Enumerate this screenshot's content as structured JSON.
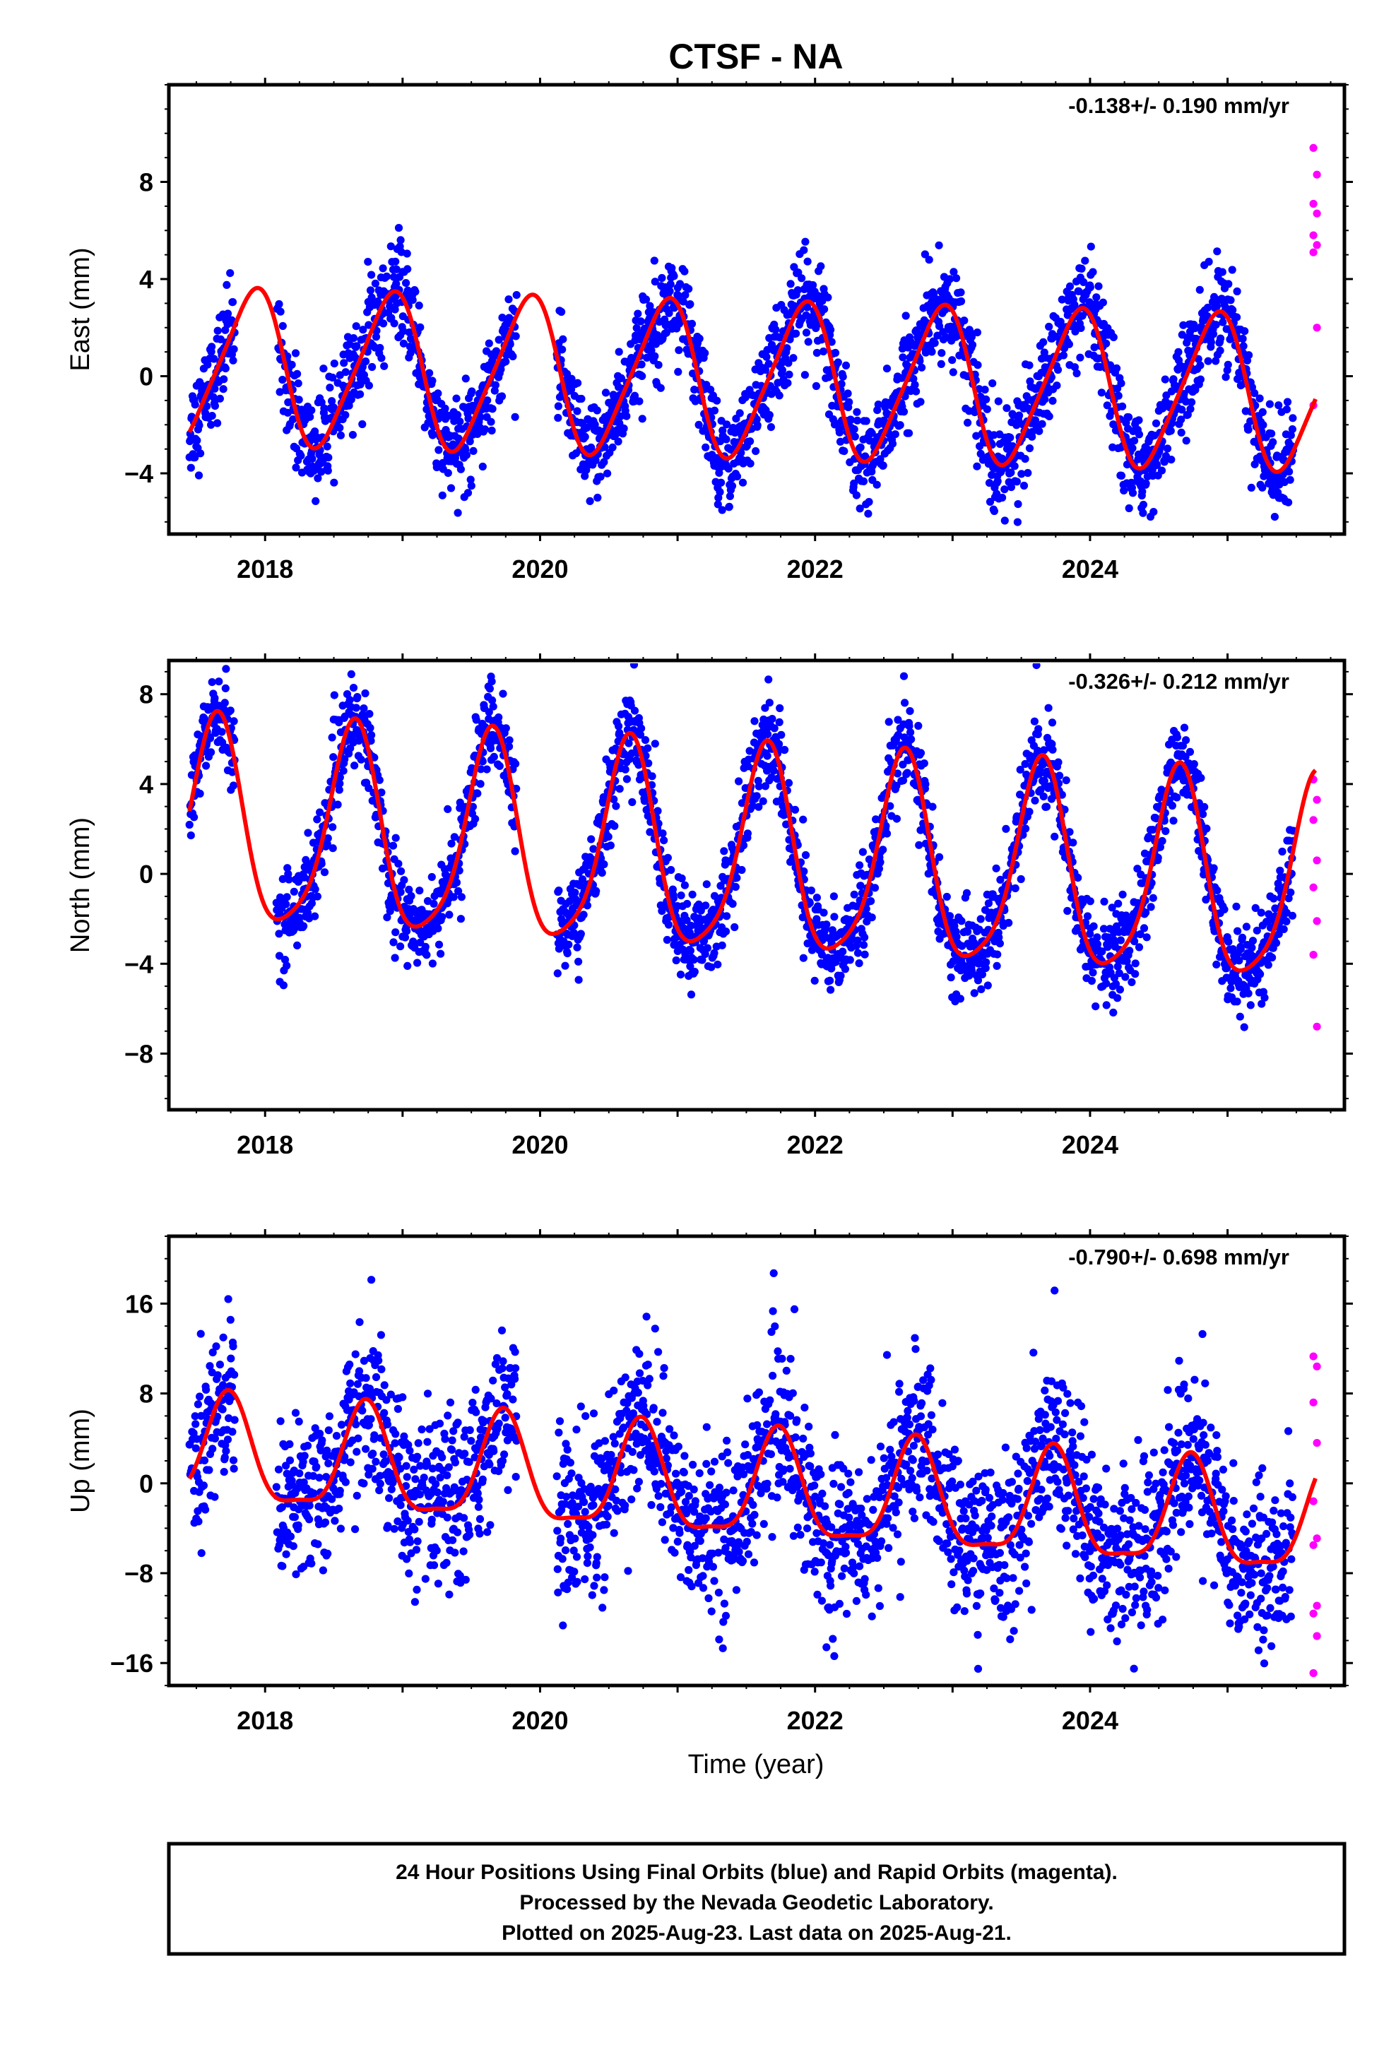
{
  "title": "CTSF - NA",
  "xlabel": "Time (year)",
  "colors": {
    "final": "#0000ff",
    "rapid": "#ff00ff",
    "model": "#ff0000",
    "frame": "#000000"
  },
  "footer": [
    "24 Hour Positions Using Final Orbits (blue) and Rapid Orbits (magenta).",
    "Processed by the Nevada Geodetic Laboratory.",
    "Plotted on 2025-Aug-23. Last data on 2025-Aug-21."
  ],
  "chart_data": [
    {
      "type": "scatter",
      "name": "east",
      "ylabel": "East (mm)",
      "rate": "-0.138+/- 0.190 mm/yr",
      "xlim": [
        2017.3,
        2025.85
      ],
      "ylim": [
        -6.5,
        12
      ],
      "x_ticks": [
        2018,
        2020,
        2022,
        2024
      ],
      "y_ticks": [
        -4,
        0,
        4,
        8
      ],
      "start": 2017.45,
      "end_final": 2025.48,
      "end": 2025.64,
      "trend": 0.4,
      "rate_val": -0.138,
      "annual_cos": -3.0,
      "annual_sin": 0.9,
      "semi_cos": 0.3,
      "semi_sin": 0.4,
      "noise": 1.0,
      "gaps": [
        [
          2017.78,
          2018.08
        ],
        [
          2019.83,
          2020.12
        ]
      ],
      "rapid_values": [
        9.4,
        8.3,
        7.1,
        6.7,
        5.8,
        5.4,
        5.1,
        2.0,
        -1.2
      ]
    },
    {
      "type": "scatter",
      "name": "north",
      "ylabel": "North (mm)",
      "rate": "-0.326+/- 0.212 mm/yr",
      "xlim": [
        2017.3,
        2025.85
      ],
      "ylim": [
        -10.5,
        9.5
      ],
      "x_ticks": [
        2018,
        2020,
        2022,
        2024
      ],
      "y_ticks": [
        -8,
        -4,
        0,
        4,
        8
      ],
      "start": 2017.45,
      "end_final": 2025.48,
      "end": 2025.64,
      "trend": 2.0,
      "rate_val": -0.326,
      "annual_cos": 1.6,
      "annual_sin": 4.2,
      "semi_cos": -0.8,
      "semi_sin": 0.3,
      "noise": 1.0,
      "gaps": [
        [
          2017.78,
          2018.08
        ],
        [
          2019.83,
          2020.12
        ]
      ],
      "rapid_values": [
        4.2,
        3.3,
        2.4,
        0.6,
        -0.6,
        -2.1,
        -3.6,
        -6.8
      ]
    },
    {
      "type": "scatter",
      "name": "up",
      "ylabel": "Up (mm)",
      "rate": "-0.790+/- 0.698 mm/yr",
      "xlim": [
        2017.3,
        2025.85
      ],
      "ylim": [
        -18,
        22
      ],
      "x_ticks": [
        2018,
        2020,
        2022,
        2024
      ],
      "y_ticks": [
        -16,
        -8,
        0,
        8,
        16
      ],
      "start": 2017.45,
      "end_final": 2025.48,
      "end": 2025.64,
      "trend": 2.5,
      "rate_val": -0.79,
      "annual_cos": -0.9,
      "annual_sin": 4.6,
      "semi_cos": -1.2,
      "semi_sin": -0.6,
      "noise": 3.6,
      "gaps": [
        [
          2017.78,
          2018.08
        ],
        [
          2019.83,
          2020.12
        ]
      ],
      "rapid_values": [
        11.3,
        10.4,
        7.2,
        3.6,
        -1.6,
        -4.9,
        -5.5,
        -10.9,
        -11.6,
        -13.6,
        -16.9
      ]
    }
  ]
}
